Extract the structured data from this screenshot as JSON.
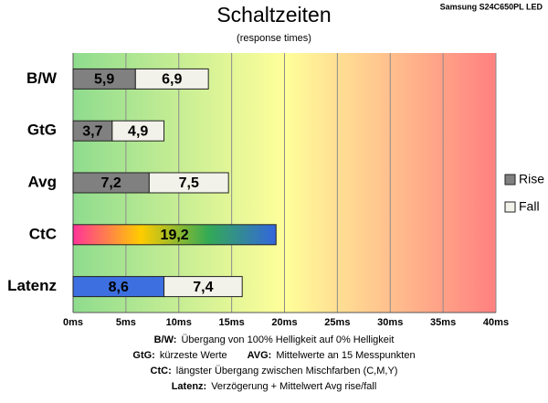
{
  "chart_data": {
    "type": "stacked_barh",
    "title": "Schaltzeiten",
    "subtitle": "(response times)",
    "corner_label": "Samsung S24C650PL LED",
    "categories": [
      "B/W",
      "GtG",
      "Avg",
      "CtC",
      "Latenz"
    ],
    "series": [
      {
        "name": "Rise",
        "color": "#808080",
        "point_colors": [
          "#808080",
          "#808080",
          "#808080",
          [
            "#ff3399",
            "#ffcc00",
            "#33aa55",
            "#3366dd"
          ],
          "#3d6fe0"
        ],
        "values": [
          5.9,
          3.7,
          7.2,
          19.2,
          8.6
        ],
        "value_labels": [
          "5,9",
          "3,7",
          "7,2",
          "19,2",
          "8,6"
        ]
      },
      {
        "name": "Fall",
        "color": "#f2f2ea",
        "values": [
          6.9,
          4.9,
          7.5,
          null,
          7.4
        ],
        "value_labels": [
          "6,9",
          "4,9",
          "7,5",
          null,
          "7,4"
        ]
      }
    ],
    "xlim": [
      0,
      40
    ],
    "xticks": [
      {
        "value": 0,
        "label": "0ms"
      },
      {
        "value": 5,
        "label": "5ms"
      },
      {
        "value": 10,
        "label": "10ms"
      },
      {
        "value": 15,
        "label": "15ms"
      },
      {
        "value": 20,
        "label": "20ms"
      },
      {
        "value": 25,
        "label": "25ms"
      },
      {
        "value": 30,
        "label": "30ms"
      },
      {
        "value": 35,
        "label": "35ms"
      },
      {
        "value": 40,
        "label": "40ms"
      }
    ],
    "grid": true,
    "legend": "right",
    "background_colors": [
      "#8edc8e",
      "#ffff9a",
      "#ff8080"
    ],
    "notes": [
      [
        {
          "key": "B/W:",
          "text": "Übergang von 100% Helligkeit auf 0% Helligkeit"
        }
      ],
      [
        {
          "key": "GtG:",
          "text": "kürzeste Werte"
        },
        {
          "key": "AVG:",
          "text": "Mittelwerte an 15 Messpunkten"
        }
      ],
      [
        {
          "key": "CtC:",
          "text": "längster Übergang zwischen Mischfarben (C,M,Y)"
        }
      ],
      [
        {
          "key": "Latenz:",
          "text": "Verzögerung + Mittelwert Avg rise/fall"
        }
      ]
    ]
  }
}
